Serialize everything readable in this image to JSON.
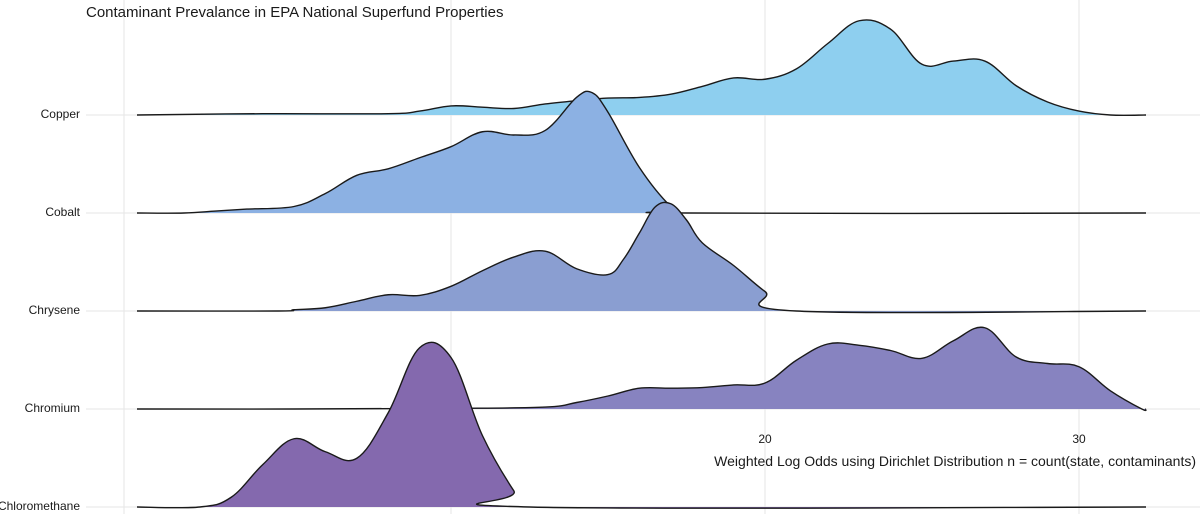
{
  "chart_data": {
    "type": "ridgeline",
    "title": "Contaminant Prevalance in EPA National Superfund Properties",
    "xlabel": "Weighted Log Odds using Dirichlet Distribution n = count(state, contaminants)",
    "ylabel": "",
    "xlim": [
      -0.5,
      32.5
    ],
    "x_ticks": [
      20,
      30
    ],
    "grid": true,
    "series": [
      {
        "name": "Copper",
        "color": "#8ecfef",
        "density": [
          [
            0,
            0
          ],
          [
            4,
            0.02
          ],
          [
            8,
            0.02
          ],
          [
            9,
            0.06
          ],
          [
            10,
            0.14
          ],
          [
            11,
            0.12
          ],
          [
            12,
            0.1
          ],
          [
            13,
            0.17
          ],
          [
            14,
            0.22
          ],
          [
            15,
            0.26
          ],
          [
            16,
            0.27
          ],
          [
            17,
            0.32
          ],
          [
            18,
            0.44
          ],
          [
            19,
            0.57
          ],
          [
            20,
            0.55
          ],
          [
            21,
            0.71
          ],
          [
            22,
            1.1
          ],
          [
            23,
            1.45
          ],
          [
            24,
            1.32
          ],
          [
            25,
            0.78
          ],
          [
            26,
            0.83
          ],
          [
            27,
            0.83
          ],
          [
            28,
            0.45
          ],
          [
            29,
            0.2
          ],
          [
            30,
            0.06
          ],
          [
            31,
            0
          ],
          [
            32.5,
            0
          ]
        ]
      },
      {
        "name": "Cobalt",
        "color": "#8cb1e3",
        "density": [
          [
            0,
            0
          ],
          [
            1.5,
            0
          ],
          [
            2.5,
            0.03
          ],
          [
            3.5,
            0.06
          ],
          [
            5,
            0.1
          ],
          [
            6,
            0.3
          ],
          [
            7,
            0.58
          ],
          [
            8,
            0.68
          ],
          [
            9,
            0.85
          ],
          [
            10,
            1.02
          ],
          [
            11,
            1.25
          ],
          [
            12,
            1.2
          ],
          [
            13,
            1.27
          ],
          [
            14,
            1.78
          ],
          [
            14.5,
            1.85
          ],
          [
            15,
            1.55
          ],
          [
            16,
            0.7
          ],
          [
            17,
            0.1
          ],
          [
            17.5,
            0
          ],
          [
            32.5,
            0
          ]
        ]
      },
      {
        "name": "Chrysene",
        "color": "#8a9ed1",
        "density": [
          [
            0,
            0
          ],
          [
            4.5,
            0
          ],
          [
            5,
            0.02
          ],
          [
            6,
            0.05
          ],
          [
            7,
            0.15
          ],
          [
            8,
            0.25
          ],
          [
            9,
            0.24
          ],
          [
            10,
            0.38
          ],
          [
            11,
            0.62
          ],
          [
            12,
            0.83
          ],
          [
            13,
            0.92
          ],
          [
            14,
            0.65
          ],
          [
            15,
            0.56
          ],
          [
            15.5,
            0.8
          ],
          [
            16,
            1.2
          ],
          [
            16.5,
            1.6
          ],
          [
            17,
            1.65
          ],
          [
            17.5,
            1.4
          ],
          [
            18,
            1.05
          ],
          [
            19,
            0.7
          ],
          [
            20,
            0.3
          ],
          [
            21,
            0
          ],
          [
            32.5,
            0
          ]
        ]
      },
      {
        "name": "Chromium",
        "color": "#8783c0",
        "density": [
          [
            0,
            0
          ],
          [
            5,
            0
          ],
          [
            10,
            0.01
          ],
          [
            13,
            0.03
          ],
          [
            14,
            0.1
          ],
          [
            15,
            0.2
          ],
          [
            16,
            0.32
          ],
          [
            17,
            0.32
          ],
          [
            18,
            0.33
          ],
          [
            19,
            0.37
          ],
          [
            20,
            0.4
          ],
          [
            21,
            0.75
          ],
          [
            22,
            1.0
          ],
          [
            23,
            0.98
          ],
          [
            24,
            0.9
          ],
          [
            25,
            0.78
          ],
          [
            26,
            1.05
          ],
          [
            27,
            1.25
          ],
          [
            28,
            0.8
          ],
          [
            29,
            0.7
          ],
          [
            30,
            0.65
          ],
          [
            31,
            0.28
          ],
          [
            32,
            0
          ],
          [
            32.5,
            0
          ]
        ]
      },
      {
        "name": "Chloromethane",
        "color": "#8469ae",
        "density": [
          [
            0,
            0
          ],
          [
            2,
            0
          ],
          [
            3,
            0.15
          ],
          [
            4,
            0.65
          ],
          [
            5,
            1.05
          ],
          [
            6,
            0.85
          ],
          [
            7,
            0.75
          ],
          [
            8,
            1.45
          ],
          [
            9,
            2.45
          ],
          [
            10,
            2.3
          ],
          [
            11,
            1.1
          ],
          [
            12,
            0.25
          ],
          [
            12.5,
            0
          ],
          [
            32.5,
            0
          ]
        ]
      }
    ]
  }
}
